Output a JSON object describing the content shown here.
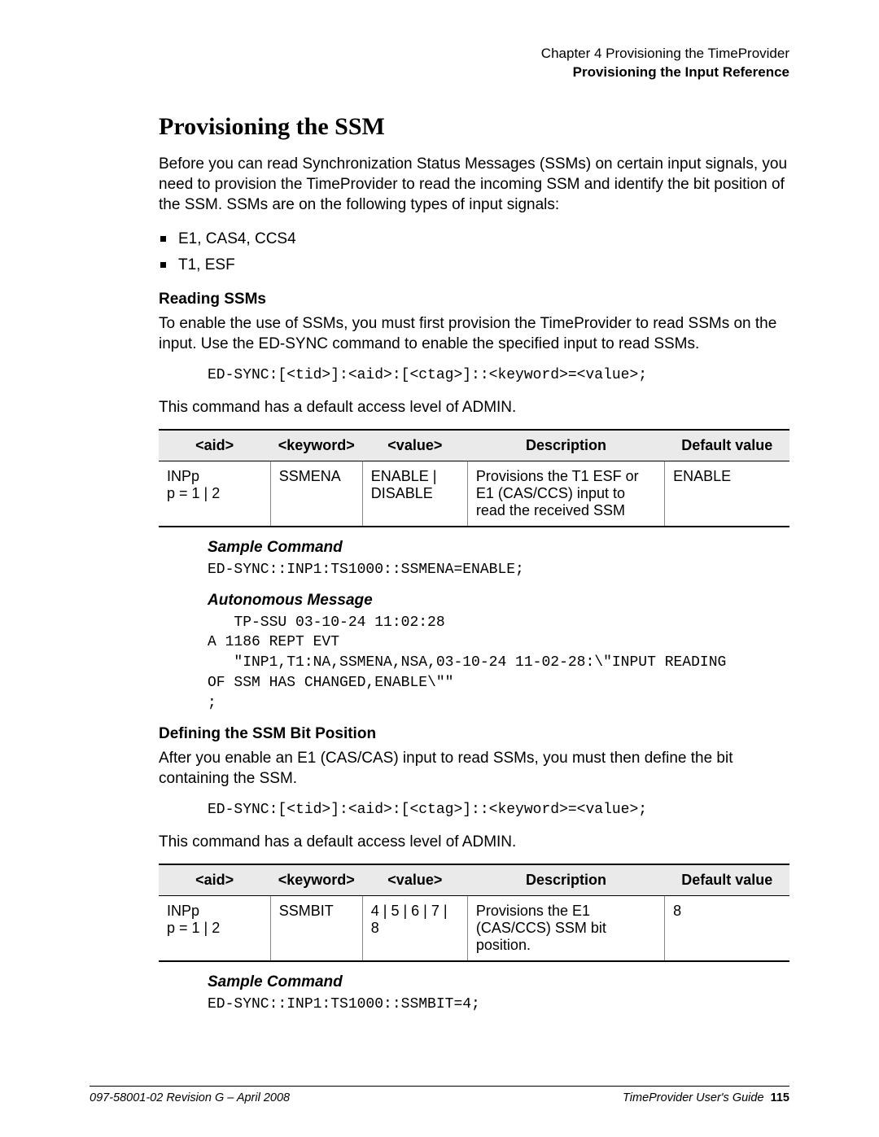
{
  "header": {
    "chapter": "Chapter 4 Provisioning the TimeProvider",
    "section": "Provisioning the Input Reference"
  },
  "title": "Provisioning the SSM",
  "intro": "Before you can read Synchronization Status Messages (SSMs) on certain input signals, you need to provision the TimeProvider to read the incoming SSM and identify the bit position of the SSM. SSMs are on the following types of input signals:",
  "bullets": {
    "b1": "E1, CAS4, CCS4",
    "b2": "T1, ESF"
  },
  "reading": {
    "heading": "Reading SSMs",
    "para": "To enable the use of SSMs, you must first provision the TimeProvider to read SSMs on the input. Use the ED-SYNC command to enable the specified input to read SSMs.",
    "syntax": "ED-SYNC:[<tid>]:<aid>:[<ctag>]::<keyword>=<value>;",
    "access": "This command has a default access level of ADMIN."
  },
  "table1": {
    "headers": {
      "c1": "<aid>",
      "c2": "<keyword>",
      "c3": "<value>",
      "c4": "Description",
      "c5": "Default value"
    },
    "row": {
      "aid": "INPp\np = 1 | 2",
      "keyword": "SSMENA",
      "value": "ENABLE | DISABLE",
      "desc": "Provisions the T1 ESF or E1 (CAS/CCS) input to read the received SSM",
      "def": "ENABLE"
    }
  },
  "sample1": {
    "heading": "Sample Command",
    "code": "ED-SYNC::INP1:TS1000::SSMENA=ENABLE;"
  },
  "auto": {
    "heading": "Autonomous Message",
    "code": "   TP-SSU 03-10-24 11:02:28\nA 1186 REPT EVT\n   \"INP1,T1:NA,SSMENA,NSA,03-10-24 11-02-28:\\\"INPUT READING\nOF SSM HAS CHANGED,ENABLE\\\"\"\n;"
  },
  "defining": {
    "heading": "Defining the SSM Bit Position",
    "para": "After you enable an E1 (CAS/CAS) input to read SSMs, you must then define the bit containing the SSM.",
    "syntax": "ED-SYNC:[<tid>]:<aid>:[<ctag>]::<keyword>=<value>;",
    "access": "This command has a default access level of ADMIN."
  },
  "table2": {
    "headers": {
      "c1": "<aid>",
      "c2": "<keyword>",
      "c3": "<value>",
      "c4": "Description",
      "c5": "Default value"
    },
    "row": {
      "aid": "INPp\np = 1 | 2",
      "keyword": "SSMBIT",
      "value": "4 | 5 | 6 | 7 | 8",
      "desc": "Provisions the E1 (CAS/CCS) SSM bit position.",
      "def": "8"
    }
  },
  "sample2": {
    "heading": "Sample Command",
    "code": "ED-SYNC::INP1:TS1000::SSMBIT=4;"
  },
  "footer": {
    "left": "097-58001-02 Revision G – April 2008",
    "right_text": "TimeProvider User's Guide",
    "page": "115"
  }
}
